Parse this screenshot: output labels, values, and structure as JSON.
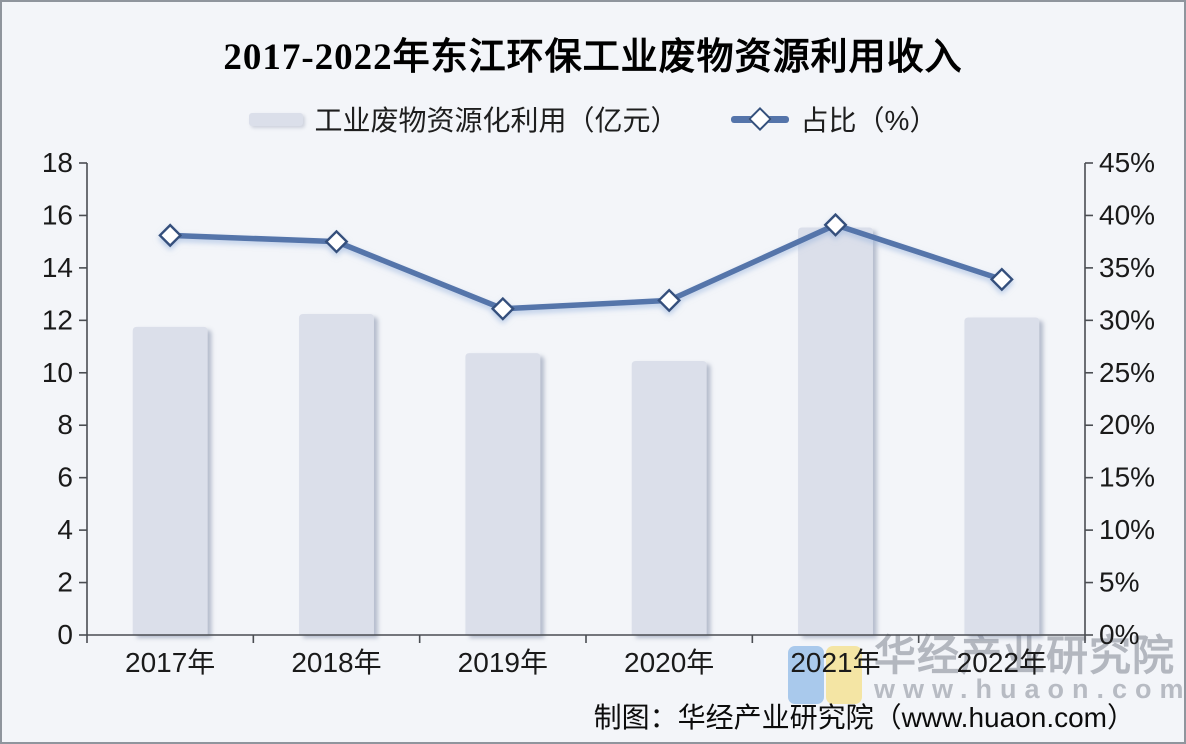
{
  "page": {
    "background": "#f3f5f9",
    "border_color": "#8f959d",
    "text_color": "#1a1a1a",
    "axis_color": "#4a4d52"
  },
  "chart_data": {
    "type": "bar+line combo",
    "title": "2017-2022年东江环保工业废物资源利用收入",
    "categories": [
      "2017年",
      "2018年",
      "2019年",
      "2020年",
      "2021年",
      "2022年"
    ],
    "series": [
      {
        "name": "工业废物资源化利用（亿元）",
        "type": "bar",
        "axis": "left",
        "color": "#dbdfea",
        "values": [
          11.75,
          12.24,
          10.75,
          10.45,
          15.54,
          12.11
        ]
      },
      {
        "name": "占比（%）",
        "type": "line",
        "axis": "right",
        "color": "#5474aa",
        "marker": "diamond",
        "marker_fill": "#ffffff",
        "marker_stroke": "#34507c",
        "values": [
          38.1,
          37.5,
          31.1,
          31.9,
          39.1,
          33.9
        ]
      }
    ],
    "left_axis": {
      "min": 0,
      "max": 18,
      "step": 2,
      "tick_labels": [
        "0",
        "2",
        "4",
        "6",
        "8",
        "10",
        "12",
        "14",
        "16",
        "18"
      ]
    },
    "right_axis": {
      "min": 0,
      "max": 45,
      "step": 5,
      "tick_labels": [
        "0%",
        "5%",
        "10%",
        "15%",
        "20%",
        "25%",
        "30%",
        "35%",
        "40%",
        "45%"
      ]
    },
    "grid": false,
    "legend_position": "top"
  },
  "watermark": {
    "line1": "华经产业研究院",
    "line2": "www.huaon.com",
    "logo_blue": "#a9c9ec",
    "logo_yellow": "#f4e5a4"
  },
  "footer": {
    "text": "制图：华经产业研究院（www.huaon.com）"
  }
}
